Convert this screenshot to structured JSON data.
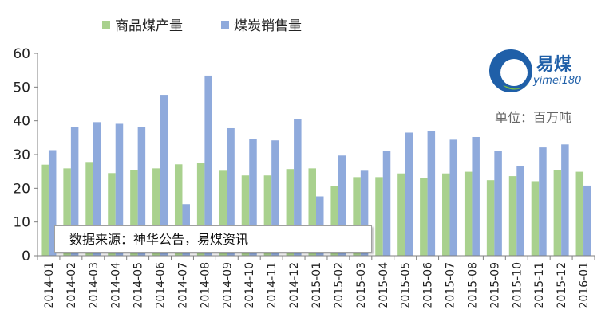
{
  "legend": {
    "series1": "商品煤产量",
    "series2": "煤炭销售量"
  },
  "unit_label": "单位：百万吨",
  "source_label": "数据来源：神华公告，易煤资讯",
  "logo": {
    "brand": "易煤",
    "sub": "yimei180"
  },
  "colors": {
    "series1": "#a9d18e",
    "series2": "#8faadc",
    "axis": "#7f7f7f"
  },
  "chart_data": {
    "type": "bar",
    "categories": [
      "2014-01",
      "2014-02",
      "2014-03",
      "2014-04",
      "2014-05",
      "2014-06",
      "2014-07",
      "2014-08",
      "2014-09",
      "2014-10",
      "2014-11",
      "2014-12",
      "2015-01",
      "2015-02",
      "2015-03",
      "2015-04",
      "2015-05",
      "2015-06",
      "2015-07",
      "2015-08",
      "2015-09",
      "2015-10",
      "2015-11",
      "2015-12",
      "2016-01"
    ],
    "series": [
      {
        "name": "商品煤产量",
        "values": [
          27.0,
          25.9,
          27.8,
          24.5,
          25.4,
          25.9,
          27.1,
          27.5,
          25.2,
          23.8,
          23.8,
          25.7,
          25.9,
          20.7,
          23.3,
          23.3,
          24.4,
          23.1,
          24.4,
          24.9,
          22.4,
          23.6,
          22.1,
          25.5,
          24.9
        ]
      },
      {
        "name": "煤炭销售量",
        "values": [
          31.3,
          38.2,
          39.6,
          39.1,
          38.1,
          47.7,
          15.3,
          53.4,
          37.8,
          34.6,
          34.2,
          40.6,
          17.6,
          29.7,
          25.2,
          31.0,
          36.5,
          36.9,
          34.4,
          35.2,
          31.0,
          26.5,
          32.1,
          33.0,
          20.8
        ]
      }
    ],
    "yticks": [
      0,
      10,
      20,
      30,
      40,
      50,
      60
    ],
    "ylim": [
      0,
      60
    ],
    "grid": false,
    "legend_position": "top"
  }
}
